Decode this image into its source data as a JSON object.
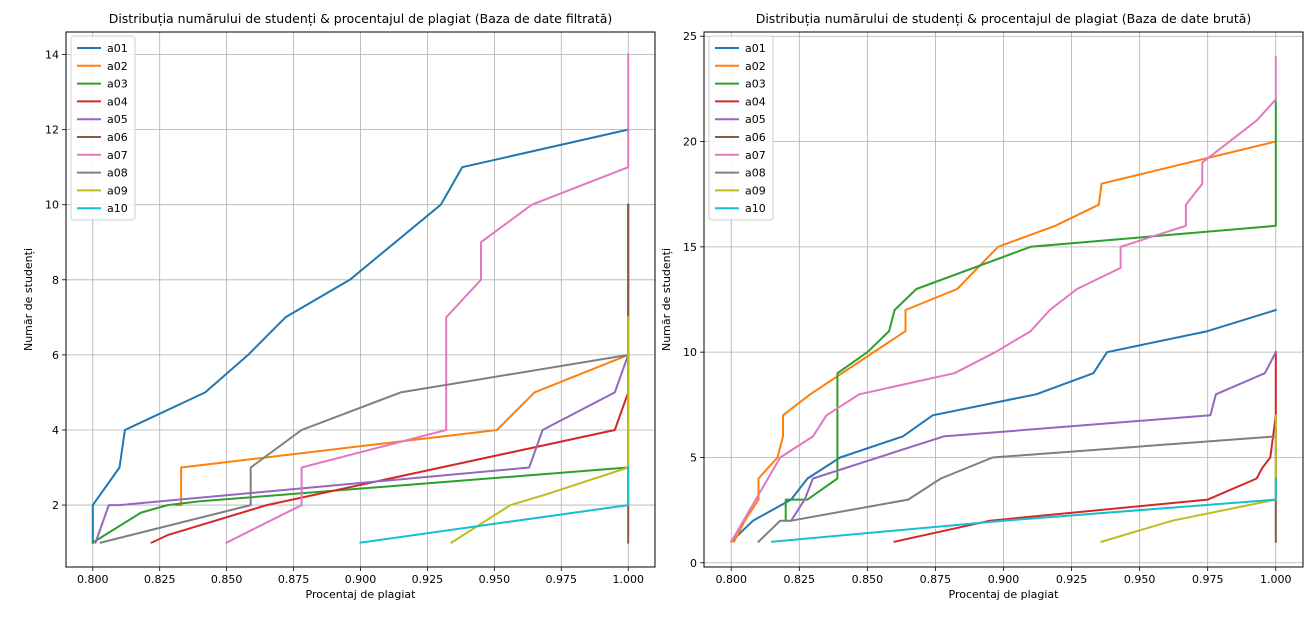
{
  "chart_data": [
    {
      "type": "line",
      "title": "Distribuția numărului de studenți & procentajul de plagiat (Baza de date filtrată)",
      "xlabel": "Procentaj de plagiat",
      "ylabel": "Număr de studenți",
      "xlim": [
        0.79,
        1.01
      ],
      "ylim": [
        0.35,
        14.6
      ],
      "xticks": [
        0.8,
        0.825,
        0.85,
        0.875,
        0.9,
        0.925,
        0.95,
        0.975,
        1.0
      ],
      "xtick_labels": [
        "0.800",
        "0.825",
        "0.850",
        "0.875",
        "0.900",
        "0.925",
        "0.950",
        "0.975",
        "1.000"
      ],
      "yticks": [
        2,
        4,
        6,
        8,
        10,
        12,
        14
      ],
      "ytick_labels": [
        "2",
        "4",
        "6",
        "8",
        "10",
        "12",
        "14"
      ],
      "grid": true,
      "legend": "upper-left",
      "series": [
        {
          "name": "a01",
          "color": "#1f77b4",
          "x": [
            0.8,
            0.8,
            0.81,
            0.812,
            0.842,
            0.858,
            0.872,
            0.896,
            0.93,
            0.938,
            1.0
          ],
          "y": [
            1,
            2,
            3,
            4,
            5,
            6,
            7,
            8,
            10,
            11,
            12
          ]
        },
        {
          "name": "a02",
          "color": "#ff7f0e",
          "x": [
            0.831,
            0.833,
            0.833,
            0.951,
            0.965,
            1.0
          ],
          "y": [
            2,
            2,
            3,
            4,
            5,
            6
          ]
        },
        {
          "name": "a03",
          "color": "#2ca02c",
          "x": [
            0.8,
            0.818,
            0.828,
            0.84,
            1.0
          ],
          "y": [
            1,
            1.8,
            2,
            2.1,
            3
          ]
        },
        {
          "name": "a04",
          "color": "#d62728",
          "x": [
            0.822,
            0.828,
            0.865,
            0.995,
            1.0,
            1.0
          ],
          "y": [
            1,
            1.2,
            2,
            4,
            5,
            10
          ]
        },
        {
          "name": "a05",
          "color": "#9467bd",
          "x": [
            0.801,
            0.806,
            0.81,
            0.963,
            0.968,
            0.995,
            1.0
          ],
          "y": [
            1,
            2,
            2,
            3,
            4,
            5,
            6
          ]
        },
        {
          "name": "a06",
          "color": "#8c564b",
          "x": [
            1.0,
            1.0
          ],
          "y": [
            1,
            10
          ]
        },
        {
          "name": "a07",
          "color": "#e377c2",
          "x": [
            0.85,
            0.878,
            0.878,
            0.932,
            0.932,
            0.945,
            0.945,
            0.964,
            1.0,
            1.0
          ],
          "y": [
            1,
            2,
            3,
            4,
            7,
            8,
            9,
            10,
            11,
            14
          ]
        },
        {
          "name": "a08",
          "color": "#7f7f7f",
          "x": [
            0.803,
            0.859,
            0.859,
            0.878,
            0.915,
            1.0
          ],
          "y": [
            1,
            2,
            3,
            4,
            5,
            6
          ]
        },
        {
          "name": "a09",
          "color": "#bcbd22",
          "x": [
            0.934,
            0.956,
            0.97,
            1.0,
            1.0
          ],
          "y": [
            1,
            2,
            2.3,
            3,
            7
          ]
        },
        {
          "name": "a10",
          "color": "#17becf",
          "x": [
            0.9,
            1.0,
            1.0
          ],
          "y": [
            1,
            2,
            3
          ]
        }
      ]
    },
    {
      "type": "line",
      "title": "Distribuția numărului de studenți & procentajul de plagiat (Baza de date brută)",
      "xlabel": "Procentaj de plagiat",
      "ylabel": "Număr de studenți",
      "xlim": [
        0.79,
        1.01
      ],
      "ylim": [
        -0.2,
        25.2
      ],
      "xticks": [
        0.8,
        0.825,
        0.85,
        0.875,
        0.9,
        0.925,
        0.95,
        0.975,
        1.0
      ],
      "xtick_labels": [
        "0.800",
        "0.825",
        "0.850",
        "0.875",
        "0.900",
        "0.925",
        "0.950",
        "0.975",
        "1.000"
      ],
      "yticks": [
        0,
        5,
        10,
        15,
        20,
        25
      ],
      "ytick_labels": [
        "0",
        "5",
        "10",
        "15",
        "20",
        "25"
      ],
      "grid": true,
      "legend": "upper-left",
      "series": [
        {
          "name": "a01",
          "color": "#1f77b4",
          "x": [
            0.8,
            0.808,
            0.822,
            0.828,
            0.84,
            0.863,
            0.874,
            0.912,
            0.933,
            0.938,
            0.975,
            1.0
          ],
          "y": [
            1,
            2,
            3,
            4,
            5,
            6,
            7,
            8,
            9,
            10,
            11,
            12
          ]
        },
        {
          "name": "a02",
          "color": "#ff7f0e",
          "x": [
            0.801,
            0.805,
            0.81,
            0.81,
            0.817,
            0.819,
            0.819,
            0.829,
            0.864,
            0.864,
            0.883,
            0.898,
            0.919,
            0.935,
            0.936,
            1.0
          ],
          "y": [
            1,
            2,
            3,
            4,
            5,
            6,
            7,
            8,
            11,
            12,
            13,
            15,
            16,
            17,
            18,
            20
          ]
        },
        {
          "name": "a03",
          "color": "#2ca02c",
          "x": [
            0.82,
            0.82,
            0.828,
            0.839,
            0.839,
            0.85,
            0.858,
            0.86,
            0.868,
            0.91,
            1.0,
            1.0
          ],
          "y": [
            2,
            3,
            3,
            4,
            9,
            10,
            11,
            12,
            13,
            15,
            16,
            22
          ]
        },
        {
          "name": "a04",
          "color": "#d62728",
          "x": [
            0.86,
            0.895,
            0.975,
            0.993,
            0.995,
            0.998,
            1.0,
            1.0
          ],
          "y": [
            1,
            2,
            3,
            4,
            4.5,
            5,
            7,
            10
          ]
        },
        {
          "name": "a05",
          "color": "#9467bd",
          "x": [
            0.822,
            0.827,
            0.83,
            0.878,
            0.976,
            0.978,
            0.996,
            1.0
          ],
          "y": [
            2,
            3,
            4,
            6,
            7,
            8,
            9,
            10
          ]
        },
        {
          "name": "a06",
          "color": "#8c564b",
          "x": [
            1.0,
            1.0
          ],
          "y": [
            1,
            7
          ]
        },
        {
          "name": "a07",
          "color": "#e377c2",
          "x": [
            0.8,
            0.818,
            0.83,
            0.835,
            0.847,
            0.882,
            0.897,
            0.91,
            0.917,
            0.927,
            0.943,
            0.943,
            0.967,
            0.967,
            0.973,
            0.973,
            0.993,
            1.0,
            1.0
          ],
          "y": [
            1,
            5,
            6,
            7,
            8,
            9,
            10,
            11,
            12,
            13,
            14,
            15,
            16,
            17,
            18,
            19,
            21,
            22,
            24
          ]
        },
        {
          "name": "a08",
          "color": "#7f7f7f",
          "x": [
            0.81,
            0.818,
            0.822,
            0.865,
            0.877,
            0.896,
            1.0
          ],
          "y": [
            1,
            2,
            2,
            3,
            4,
            5,
            6
          ]
        },
        {
          "name": "a09",
          "color": "#bcbd22",
          "x": [
            0.936,
            0.962,
            1.0,
            1.0
          ],
          "y": [
            1,
            2,
            3,
            7
          ]
        },
        {
          "name": "a10",
          "color": "#17becf",
          "x": [
            0.815,
            0.9,
            1.0,
            1.0
          ],
          "y": [
            1,
            2,
            3,
            4
          ]
        }
      ]
    }
  ]
}
